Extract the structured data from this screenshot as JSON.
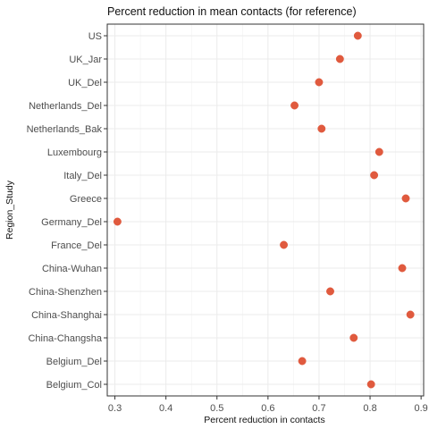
{
  "chart_data": {
    "type": "scatter",
    "title": "Percent reduction in mean contacts (for reference)",
    "xlabel": "Percent reduction in contacts",
    "ylabel": "Region_Study",
    "xlim": [
      0.285,
      0.905
    ],
    "xticks": [
      0.3,
      0.4,
      0.5,
      0.6,
      0.7,
      0.8,
      0.9
    ],
    "xtick_labels": [
      "0.3",
      "0.4",
      "0.5",
      "0.6",
      "0.7",
      "0.8",
      "0.9"
    ],
    "grid": true,
    "legend": "none",
    "point_color": "#E05A3E",
    "points": [
      {
        "category": "US",
        "value": 0.776
      },
      {
        "category": "UK_Jar",
        "value": 0.741
      },
      {
        "category": "UK_Del",
        "value": 0.7
      },
      {
        "category": "Netherlands_Del",
        "value": 0.652
      },
      {
        "category": "Netherlands_Bak",
        "value": 0.705
      },
      {
        "category": "Luxembourg",
        "value": 0.818
      },
      {
        "category": "Italy_Del",
        "value": 0.808
      },
      {
        "category": "Greece",
        "value": 0.87
      },
      {
        "category": "Germany_Del",
        "value": 0.305
      },
      {
        "category": "France_Del",
        "value": 0.631
      },
      {
        "category": "China-Wuhan",
        "value": 0.863
      },
      {
        "category": "China-Shenzhen",
        "value": 0.722
      },
      {
        "category": "China-Shanghai",
        "value": 0.879
      },
      {
        "category": "China-Changsha",
        "value": 0.768
      },
      {
        "category": "Belgium_Del",
        "value": 0.667
      },
      {
        "category": "Belgium_Col",
        "value": 0.802
      }
    ]
  }
}
